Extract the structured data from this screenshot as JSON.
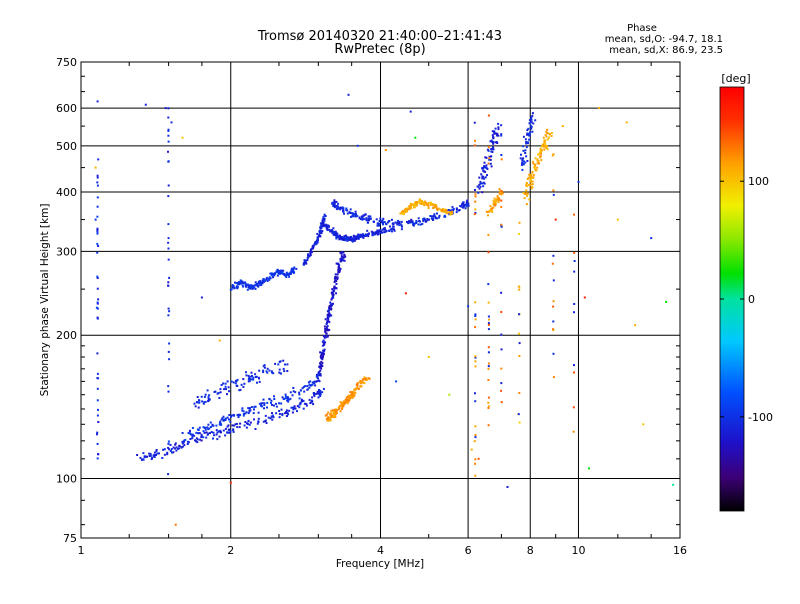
{
  "header": {
    "title_line1": "Tromsø 20140320 21:40:00–21:41:43",
    "title_line2": "RwPretec (8p)",
    "phase_heading": "Phase",
    "phase_line1": "mean, sd,O: -94.7, 18.1",
    "phase_line2": "mean, sd,X:  86.9, 23.5"
  },
  "colorbar": {
    "unit": "[deg]",
    "range": [
      -180,
      180
    ],
    "ticks": [
      {
        "value": 100,
        "label": "100"
      },
      {
        "value": 0,
        "label": "0"
      },
      {
        "value": -100,
        "label": "-100"
      }
    ]
  },
  "chart_data": {
    "type": "scatter",
    "title": "",
    "xlabel": "Frequency [MHz]",
    "ylabel": "Stationary phase Virtual Height [km]",
    "x_scale": "log",
    "y_scale": "log",
    "xlim": [
      1,
      16
    ],
    "ylim": [
      75,
      750
    ],
    "x_ticks": [
      {
        "value": 1,
        "label": "1"
      },
      {
        "value": 2,
        "label": "2"
      },
      {
        "value": 4,
        "label": "4"
      },
      {
        "value": 6,
        "label": "6"
      },
      {
        "value": 8,
        "label": "8"
      },
      {
        "value": 10,
        "label": "10"
      },
      {
        "value": 16,
        "label": "16"
      }
    ],
    "y_ticks": [
      {
        "value": 75,
        "label": "75"
      },
      {
        "value": 100,
        "label": "100"
      },
      {
        "value": 200,
        "label": "200"
      },
      {
        "value": 300,
        "label": "300"
      },
      {
        "value": 400,
        "label": "400"
      },
      {
        "value": 500,
        "label": "500"
      },
      {
        "value": 600,
        "label": "600"
      },
      {
        "value": 750,
        "label": "750"
      }
    ],
    "grid": true,
    "color_variable": "phase [deg]",
    "traces": [
      {
        "x": [
          1.3,
          1.45,
          1.6,
          1.8,
          2.0,
          2.3,
          2.6,
          2.9,
          3.05
        ],
        "y": [
          110,
          113,
          118,
          123,
          127,
          132,
          138,
          146,
          154
        ],
        "phase": -110,
        "spread": 0.035
      },
      {
        "x": [
          1.6,
          1.8,
          2.0,
          2.2,
          2.5,
          2.8,
          3.0
        ],
        "y": [
          122,
          128,
          134,
          140,
          146,
          154,
          162
        ],
        "phase": -100,
        "spread": 0.04
      },
      {
        "x": [
          1.7,
          1.9,
          2.1,
          2.3,
          2.6
        ],
        "y": [
          145,
          152,
          160,
          166,
          172
        ],
        "phase": -105,
        "spread": 0.05
      },
      {
        "x": [
          2.0,
          2.1,
          2.2,
          2.3,
          2.4,
          2.5,
          2.6,
          2.7
        ],
        "y": [
          250,
          258,
          252,
          258,
          266,
          272,
          268,
          275
        ],
        "phase": -100,
        "spread": 0.02
      },
      {
        "x": [
          2.8,
          2.9,
          3.0,
          3.05,
          3.1
        ],
        "y": [
          280,
          300,
          320,
          340,
          360
        ],
        "phase": -110,
        "spread": 0.02
      },
      {
        "x": [
          3.0,
          3.05,
          3.1,
          3.15,
          3.2,
          3.25,
          3.3,
          3.4
        ],
        "y": [
          160,
          180,
          200,
          220,
          240,
          260,
          280,
          300
        ],
        "phase": -120,
        "spread": 0.03
      },
      {
        "x": [
          3.1,
          3.2,
          3.3,
          3.4,
          3.5,
          3.6,
          3.8,
          4.0,
          4.3
        ],
        "y": [
          340,
          330,
          322,
          320,
          318,
          322,
          326,
          330,
          336
        ],
        "phase": -110,
        "spread": 0.02
      },
      {
        "x": [
          3.2,
          3.3,
          3.5,
          3.7,
          4.0,
          4.4,
          4.8,
          5.2,
          5.7,
          6.0
        ],
        "y": [
          380,
          370,
          360,
          352,
          345,
          342,
          346,
          355,
          368,
          380
        ],
        "phase": -105,
        "spread": 0.025
      },
      {
        "x": [
          3.1,
          3.2,
          3.3,
          3.4,
          3.5,
          3.6,
          3.8
        ],
        "y": [
          132,
          136,
          140,
          145,
          150,
          156,
          164
        ],
        "phase": 120,
        "spread": 0.03
      },
      {
        "x": [
          4.4,
          4.6,
          4.8,
          5.0,
          5.3,
          5.6
        ],
        "y": [
          360,
          372,
          382,
          376,
          368,
          358
        ],
        "phase": 110,
        "spread": 0.02
      },
      {
        "x": [
          6.3,
          6.5,
          6.7,
          6.9
        ],
        "y": [
          400,
          450,
          500,
          550
        ],
        "phase": -110,
        "spread": 0.05
      },
      {
        "x": [
          6.6,
          6.8,
          7.0
        ],
        "y": [
          360,
          380,
          400
        ],
        "phase": 115,
        "spread": 0.03
      },
      {
        "x": [
          7.8,
          8.0,
          8.2,
          8.5,
          8.8
        ],
        "y": [
          390,
          420,
          460,
          500,
          540
        ],
        "phase": 110,
        "spread": 0.05
      },
      {
        "x": [
          7.7,
          7.9,
          8.1
        ],
        "y": [
          450,
          520,
          580
        ],
        "phase": -105,
        "spread": 0.05
      }
    ],
    "scatter_points": [
      {
        "x": 1.07,
        "y": 350,
        "phase": -100
      },
      {
        "x": 1.07,
        "y": 450,
        "phase": 110
      },
      {
        "x": 1.08,
        "y": 620,
        "phase": -110
      },
      {
        "x": 1.35,
        "y": 610,
        "phase": -110
      },
      {
        "x": 1.48,
        "y": 600,
        "phase": -110
      },
      {
        "x": 1.52,
        "y": 560,
        "phase": -105
      },
      {
        "x": 1.5,
        "y": 320,
        "phase": -100
      },
      {
        "x": 1.55,
        "y": 80,
        "phase": 130
      },
      {
        "x": 1.6,
        "y": 520,
        "phase": 100
      },
      {
        "x": 1.75,
        "y": 240,
        "phase": -110
      },
      {
        "x": 1.9,
        "y": 195,
        "phase": 110
      },
      {
        "x": 2.0,
        "y": 98,
        "phase": 160
      },
      {
        "x": 3.45,
        "y": 640,
        "phase": -110
      },
      {
        "x": 3.6,
        "y": 500,
        "phase": -100
      },
      {
        "x": 4.1,
        "y": 490,
        "phase": 120
      },
      {
        "x": 4.6,
        "y": 590,
        "phase": -110
      },
      {
        "x": 4.7,
        "y": 520,
        "phase": 20
      },
      {
        "x": 4.3,
        "y": 160,
        "phase": -90
      },
      {
        "x": 4.5,
        "y": 245,
        "phase": 160
      },
      {
        "x": 5.0,
        "y": 180,
        "phase": 100
      },
      {
        "x": 5.5,
        "y": 150,
        "phase": 60
      },
      {
        "x": 6.0,
        "y": 230,
        "phase": -100
      },
      {
        "x": 6.1,
        "y": 115,
        "phase": 110
      },
      {
        "x": 6.3,
        "y": 110,
        "phase": 140
      },
      {
        "x": 7.2,
        "y": 96,
        "phase": -110
      },
      {
        "x": 9.0,
        "y": 350,
        "phase": 160
      },
      {
        "x": 9.3,
        "y": 550,
        "phase": 110
      },
      {
        "x": 10.0,
        "y": 420,
        "phase": -100
      },
      {
        "x": 10.3,
        "y": 240,
        "phase": 160
      },
      {
        "x": 10.5,
        "y": 105,
        "phase": 20
      },
      {
        "x": 12.0,
        "y": 350,
        "phase": 100
      },
      {
        "x": 12.5,
        "y": 560,
        "phase": 110
      },
      {
        "x": 13.0,
        "y": 210,
        "phase": 110
      },
      {
        "x": 13.5,
        "y": 130,
        "phase": 100
      },
      {
        "x": 14.0,
        "y": 320,
        "phase": -100
      },
      {
        "x": 15.0,
        "y": 235,
        "phase": 20
      },
      {
        "x": 15.5,
        "y": 97,
        "phase": 0
      },
      {
        "x": 11.0,
        "y": 600,
        "phase": 110
      }
    ],
    "vertical_streaks": [
      {
        "x": 1.08,
        "y_range": [
          110,
          520
        ],
        "phase": -100,
        "count": 40
      },
      {
        "x": 1.5,
        "y_range": [
          85,
          600
        ],
        "phase": -105,
        "count": 30
      },
      {
        "x": 6.2,
        "y_range": [
          100,
          560
        ],
        "phase": 120,
        "count": 28
      },
      {
        "x": 6.6,
        "y_range": [
          110,
          600
        ],
        "phase": 130,
        "count": 24
      },
      {
        "x": 7.0,
        "y_range": [
          120,
          560
        ],
        "phase": 130,
        "count": 20
      },
      {
        "x": 7.6,
        "y_range": [
          130,
          400
        ],
        "phase": 110,
        "count": 14
      },
      {
        "x": 8.9,
        "y_range": [
          140,
          500
        ],
        "phase": 120,
        "count": 14
      },
      {
        "x": 9.8,
        "y_range": [
          120,
          360
        ],
        "phase": 140,
        "count": 10
      }
    ]
  }
}
